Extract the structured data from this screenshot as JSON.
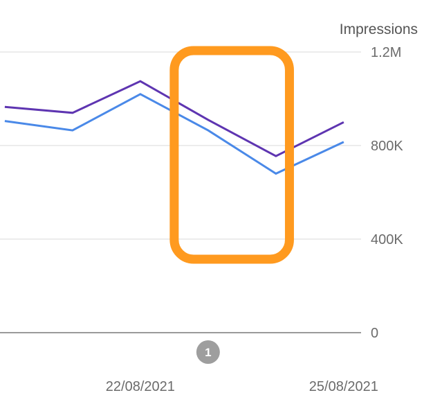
{
  "chart_data": {
    "type": "line",
    "ylabel": "Impressions",
    "y_ticks": [
      {
        "value": 0,
        "label": "0"
      },
      {
        "value": 400000,
        "label": "400K"
      },
      {
        "value": 800000,
        "label": "800K"
      },
      {
        "value": 1200000,
        "label": "1.2M"
      }
    ],
    "ylim": [
      0,
      1200000
    ],
    "x_ticks": [
      {
        "x": 1.5,
        "label": "22/08/2021"
      },
      {
        "x": 4.5,
        "label": "25/08/2021"
      }
    ],
    "x_range": [
      -0.57,
      4.93
    ],
    "grid": true,
    "series": [
      {
        "color": "#5e35b1",
        "x": [
          -0.5,
          0.5,
          1.5,
          2.5,
          3.5,
          4.5
        ],
        "values": [
          965000,
          940000,
          1075000,
          910000,
          755000,
          900000
        ]
      },
      {
        "color": "#4a89e8",
        "x": [
          -0.5,
          0.5,
          1.5,
          2.5,
          3.5,
          4.5
        ],
        "values": [
          905000,
          865000,
          1020000,
          865000,
          680000,
          815000
        ]
      }
    ],
    "annotations": [
      {
        "label": "1",
        "x": 2.5,
        "color": "#9e9e9e"
      }
    ],
    "highlight": {
      "color": "#ff9a1f",
      "x_range": [
        2.0,
        3.7
      ],
      "y_range": [
        320000,
        1200000
      ]
    }
  }
}
